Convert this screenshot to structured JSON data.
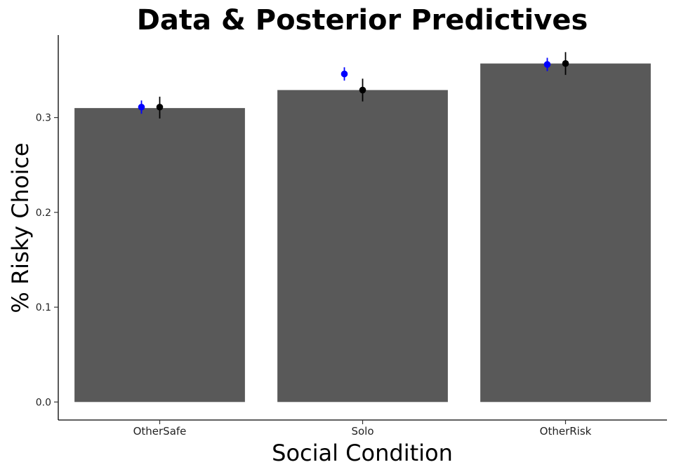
{
  "chart_data": {
    "type": "bar",
    "title": "Data & Posterior Predictives",
    "xlabel": "Social Condition",
    "ylabel": "% Risky Choice",
    "categories": [
      "OtherSafe",
      "Solo",
      "OtherRisk"
    ],
    "ylim": [
      -0.019,
      0.387
    ],
    "yticks": [
      0.0,
      0.1,
      0.2,
      0.3
    ],
    "ytick_labels": [
      "0.0",
      "0.1",
      "0.2",
      "0.3"
    ],
    "grid": false,
    "legend": "none",
    "bars": {
      "values": [
        0.31,
        0.329,
        0.357
      ],
      "color": "#595959"
    },
    "points": [
      {
        "color": "#0000ff",
        "offset": "left",
        "values": [
          0.311,
          0.346,
          0.356
        ],
        "lower": [
          0.304,
          0.339,
          0.349
        ],
        "upper": [
          0.318,
          0.353,
          0.363
        ]
      },
      {
        "color": "#000000",
        "offset": "center",
        "values": [
          0.311,
          0.329,
          0.357
        ],
        "lower": [
          0.299,
          0.317,
          0.345
        ],
        "upper": [
          0.322,
          0.341,
          0.369
        ]
      }
    ]
  }
}
